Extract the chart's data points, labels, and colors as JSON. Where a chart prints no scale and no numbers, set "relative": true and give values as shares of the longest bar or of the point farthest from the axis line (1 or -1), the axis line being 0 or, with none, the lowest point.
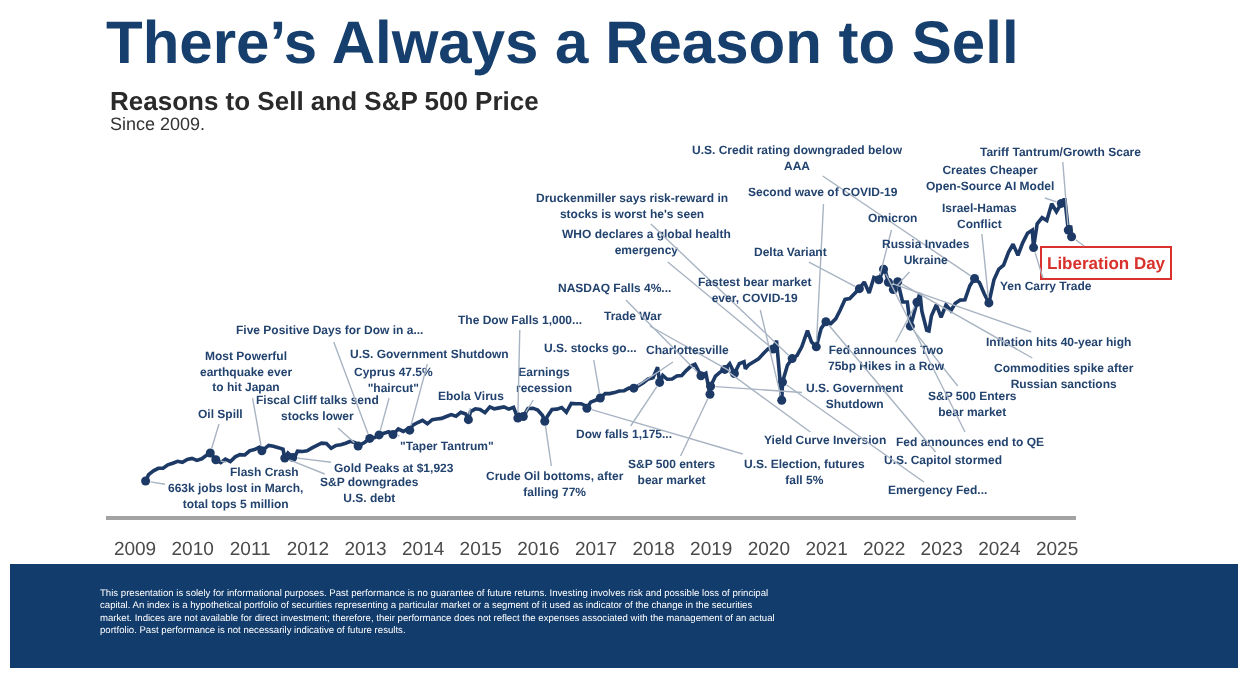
{
  "chart_data": {
    "type": "line",
    "title": "There’s Always a Reason to Sell",
    "subtitle": "Reasons to Sell and S&P 500 Price",
    "relative": true,
    "tick_labels": "x",
    "xlim": [
      "2008-07",
      "2025-05"
    ],
    "xticks": [
      "2009",
      "2010",
      "2011",
      "2012",
      "2013",
      "2014",
      "2015",
      "2016",
      "2017",
      "2018",
      "2019",
      "2020",
      "2021",
      "2022",
      "2023",
      "2024",
      "2025"
    ],
    "x": [
      "2009-03-09",
      "2009-03-28",
      "2009-04-28",
      "2009-05-28",
      "2009-06-28",
      "2009-07-28",
      "2009-08-28",
      "2009-09-28",
      "2009-10-28",
      "2009-11-28",
      "2009-12-28",
      "2010-01-28",
      "2010-02-28",
      "2010-03-28",
      "2010-04-23",
      "2010-05-28",
      "2010-06-28",
      "2010-07-28",
      "2010-08-28",
      "2010-09-28",
      "2010-10-28",
      "2010-11-28",
      "2010-12-28",
      "2011-01-28",
      "2011-02-28",
      "2011-03-16",
      "2011-04-28",
      "2011-05-28",
      "2011-06-28",
      "2011-07-28",
      "2011-08-08",
      "2011-08-28",
      "2011-09-28",
      "2011-10-03",
      "2011-10-28",
      "2011-11-28",
      "2011-12-28",
      "2012-01-28",
      "2012-02-28",
      "2012-03-28",
      "2012-04-28",
      "2012-05-28",
      "2012-06-28",
      "2012-07-28",
      "2012-08-28",
      "2012-09-28",
      "2012-10-28",
      "2012-11-15",
      "2012-12-28",
      "2013-01-28",
      "2013-02-28",
      "2013-03-28",
      "2013-04-28",
      "2013-05-28",
      "2013-06-24",
      "2013-07-28",
      "2013-08-28",
      "2013-09-28",
      "2013-10-08",
      "2013-10-28",
      "2013-11-28",
      "2013-12-28",
      "2014-01-28",
      "2014-02-28",
      "2014-03-28",
      "2014-04-28",
      "2014-05-28",
      "2014-06-28",
      "2014-07-28",
      "2014-08-28",
      "2014-09-28",
      "2014-10-15",
      "2014-10-28",
      "2014-11-28",
      "2014-12-28",
      "2015-01-28",
      "2015-02-28",
      "2015-03-28",
      "2015-04-28",
      "2015-05-28",
      "2015-06-28",
      "2015-07-28",
      "2015-08-24",
      "2015-08-28",
      "2015-09-28",
      "2015-10-28",
      "2015-11-28",
      "2015-12-28",
      "2016-01-28",
      "2016-02-11",
      "2016-02-28",
      "2016-03-28",
      "2016-04-28",
      "2016-05-28",
      "2016-06-27",
      "2016-07-28",
      "2016-08-28",
      "2016-09-28",
      "2016-10-28",
      "2016-11-04",
      "2016-11-28",
      "2016-12-28",
      "2017-01-28",
      "2017-02-28",
      "2017-03-28",
      "2017-04-28",
      "2017-05-28",
      "2017-06-28",
      "2017-07-28",
      "2017-08-28",
      "2017-09-28",
      "2017-10-28",
      "2017-11-28",
      "2017-12-28",
      "2018-01-26",
      "2018-02-08",
      "2018-02-28",
      "2018-03-28",
      "2018-04-28",
      "2018-05-28",
      "2018-06-28",
      "2018-07-28",
      "2018-08-28",
      "2018-09-20",
      "2018-10-28",
      "2018-11-28",
      "2018-12-24",
      "2018-12-28",
      "2019-01-28",
      "2019-02-28",
      "2019-03-28",
      "2019-04-28",
      "2019-05-28",
      "2019-06-28",
      "2019-07-28",
      "2019-08-05",
      "2019-08-28",
      "2019-09-28",
      "2019-10-28",
      "2019-11-28",
      "2019-12-28",
      "2020-01-28",
      "2020-02-19",
      "2020-03-23",
      "2020-03-28",
      "2020-04-28",
      "2020-05-28",
      "2020-06-28",
      "2020-07-28",
      "2020-09-02",
      "2020-09-28",
      "2020-10-28",
      "2020-11-28",
      "2020-12-28",
      "2021-01-28",
      "2021-02-28",
      "2021-03-28",
      "2021-04-28",
      "2021-05-28",
      "2021-06-28",
      "2021-07-28",
      "2021-08-28",
      "2021-09-28",
      "2021-10-28",
      "2021-11-28",
      "2021-12-28",
      "2022-01-03",
      "2022-01-28",
      "2022-02-28",
      "2022-03-28",
      "2022-04-28",
      "2022-05-28",
      "2022-06-16",
      "2022-06-28",
      "2022-07-28",
      "2022-08-16",
      "2022-08-28",
      "2022-09-28",
      "2022-10-12",
      "2022-10-28",
      "2022-11-28",
      "2022-12-28",
      "2023-01-28",
      "2023-02-28",
      "2023-03-28",
      "2023-04-28",
      "2023-05-28",
      "2023-06-28",
      "2023-07-28",
      "2023-08-28",
      "2023-09-28",
      "2023-10-27",
      "2023-11-28",
      "2023-12-28",
      "2024-01-28",
      "2024-02-28",
      "2024-03-28",
      "2024-04-28",
      "2024-05-28",
      "2024-06-28",
      "2024-07-28",
      "2024-08-05",
      "2024-08-28",
      "2024-09-28",
      "2024-10-28",
      "2024-11-28",
      "2024-12-28",
      "2025-01-28",
      "2025-02-19",
      "2025-03-13",
      "2025-03-28",
      "2025-04-03"
    ],
    "series": [
      {
        "color": "#1d3a66",
        "values": [
          0.11,
          0.13,
          0.142,
          0.15,
          0.15,
          0.161,
          0.166,
          0.172,
          0.169,
          0.178,
          0.181,
          0.175,
          0.18,
          0.19,
          0.198,
          0.177,
          0.168,
          0.179,
          0.171,
          0.186,
          0.193,
          0.192,
          0.205,
          0.209,
          0.216,
          0.205,
          0.222,
          0.219,
          0.215,
          0.21,
          0.182,
          0.198,
          0.184,
          0.179,
          0.204,
          0.203,
          0.205,
          0.214,
          0.222,
          0.229,
          0.228,
          0.213,
          0.222,
          0.224,
          0.229,
          0.235,
          0.23,
          0.22,
          0.232,
          0.244,
          0.247,
          0.255,
          0.26,
          0.265,
          0.256,
          0.274,
          0.266,
          0.274,
          0.27,
          0.286,
          0.294,
          0.301,
          0.29,
          0.303,
          0.305,
          0.307,
          0.313,
          0.319,
          0.314,
          0.326,
          0.321,
          0.303,
          0.328,
          0.337,
          0.335,
          0.325,
          0.343,
          0.337,
          0.34,
          0.343,
          0.336,
          0.342,
          0.308,
          0.321,
          0.313,
          0.338,
          0.339,
          0.333,
          0.316,
          0.298,
          0.314,
          0.335,
          0.336,
          0.341,
          0.326,
          0.354,
          0.353,
          0.353,
          0.346,
          0.339,
          0.358,
          0.364,
          0.371,
          0.385,
          0.385,
          0.388,
          0.393,
          0.394,
          0.402,
          0.402,
          0.41,
          0.419,
          0.431,
          0.435,
          0.468,
          0.42,
          0.442,
          0.43,
          0.431,
          0.44,
          0.442,
          0.458,
          0.472,
          0.477,
          0.441,
          0.449,
          0.383,
          0.408,
          0.44,
          0.453,
          0.461,
          0.479,
          0.448,
          0.479,
          0.485,
          0.463,
          0.476,
          0.485,
          0.494,
          0.511,
          0.526,
          0.525,
          0.551,
          0.364,
          0.421,
          0.474,
          0.495,
          0.505,
          0.532,
          0.583,
          0.547,
          0.532,
          0.59,
          0.611,
          0.605,
          0.62,
          0.647,
          0.681,
          0.684,
          0.7,
          0.715,
          0.736,
          0.701,
          0.75,
          0.743,
          0.776,
          0.781,
          0.735,
          0.712,
          0.737,
          0.673,
          0.673,
          0.597,
          0.616,
          0.672,
          0.701,
          0.644,
          0.584,
          0.582,
          0.63,
          0.664,
          0.625,
          0.664,
          0.646,
          0.669,
          0.679,
          0.68,
          0.724,
          0.747,
          0.734,
          0.698,
          0.67,
          0.743,
          0.776,
          0.789,
          0.829,
          0.855,
          0.82,
          0.859,
          0.889,
          0.899,
          0.844,
          0.919,
          0.938,
          0.929,
          0.982,
          0.957,
          0.983,
          1.0,
          0.899,
          0.913,
          0.878
        ]
      }
    ],
    "annotations": [
      {
        "text": "Oil Spill",
        "x": "2010-04-23",
        "y": 0.198
      },
      {
        "text": "Most Powerful\nearthquake ever\nto hit Japan",
        "x": "2011-03-16",
        "y": 0.205
      },
      {
        "text": "Flash Crash",
        "x": "2010-05-28",
        "y": 0.177
      },
      {
        "text": "663k jobs lost in March,\ntotal tops 5 million",
        "x": "2009-03-09",
        "y": 0.11
      },
      {
        "text": "Fiscal Cliff talks send\nstocks lower",
        "x": "2012-11-15",
        "y": 0.22
      },
      {
        "text": "Five Positive Days for Dow in a...",
        "x": "2013-01-28",
        "y": 0.244
      },
      {
        "text": "Cyprus 47.5%\n\"haircut\"",
        "x": "2013-03-28",
        "y": 0.255
      },
      {
        "text": "U.S. Government Shutdown",
        "x": "2013-10-08",
        "y": 0.27
      },
      {
        "text": "Gold Peaks at $1,923",
        "x": "2011-09-28",
        "y": 0.184
      },
      {
        "text": "S&P downgrades\nU.S. debt",
        "x": "2011-08-08",
        "y": 0.182
      },
      {
        "text": "\"Taper Tantrum\"",
        "x": "2013-06-24",
        "y": 0.256
      },
      {
        "text": "Ebola Virus",
        "x": "2014-10-15",
        "y": 0.303
      },
      {
        "text": "Earnings\nrecession",
        "x": "2015-09-28",
        "y": 0.313
      },
      {
        "text": "Crude Oil bottoms, after\nfalling 77%",
        "x": "2016-02-11",
        "y": 0.298
      },
      {
        "text": "The Dow Falls 1,000...",
        "x": "2015-08-24",
        "y": 0.308
      },
      {
        "text": "U.S. stocks go...",
        "x": "2017-01-28",
        "y": 0.371
      },
      {
        "text": "Dow falls 1,175...",
        "x": "2018-02-08",
        "y": 0.42
      },
      {
        "text": "S&P 500 enters\nbear market",
        "x": "2018-12-24",
        "y": 0.383
      },
      {
        "text": "Trade War",
        "x": "2019-05-28",
        "y": 0.448
      },
      {
        "text": "Charlottesville",
        "x": "2017-08-28",
        "y": 0.402
      },
      {
        "text": "NASDAQ Falls 4%...",
        "x": "2018-10-28",
        "y": 0.441
      },
      {
        "text": "WHO declares a global health\nemergency",
        "x": "2020-01-28",
        "y": 0.525
      },
      {
        "text": "Druckenmiller says risk-reward in\nstocks is worst he's seen",
        "x": "2020-05-28",
        "y": 0.495
      },
      {
        "text": "Fastest bear market\never, COVID-19",
        "x": "2020-03-23",
        "y": 0.364
      },
      {
        "text": "U.S. Credit rating downgraded below\nAAA",
        "x": "2023-07-28",
        "y": 0.747
      },
      {
        "text": "Second wave of COVID-19",
        "x": "2020-10-28",
        "y": 0.532
      },
      {
        "text": "Delta Variant",
        "x": "2021-07-28",
        "y": 0.715
      },
      {
        "text": "Omicron",
        "x": "2021-11-28",
        "y": 0.743
      },
      {
        "text": "Russia Invades\nUkraine",
        "x": "2022-02-28",
        "y": 0.712
      },
      {
        "text": "Israel-Hamas\nConflict",
        "x": "2023-10-27",
        "y": 0.67
      },
      {
        "text": "Creates Cheaper\nOpen-Source AI Model",
        "x": "2025-01-28",
        "y": 0.983
      },
      {
        "text": "Tariff Tantrum/Growth Scare",
        "x": "2025-03-13",
        "y": 0.899
      },
      {
        "text": "Liberation Day",
        "x": "2025-04-03",
        "y": 0.878
      },
      {
        "text": "Yen Carry Trade",
        "x": "2024-08-05",
        "y": 0.844
      },
      {
        "text": "Inflation hits 40-year high",
        "x": "2022-01-28",
        "y": 0.735
      },
      {
        "text": "Commodities spike after\nRussian sanctions",
        "x": "2022-03-28",
        "y": 0.737
      },
      {
        "text": "S&P 500 Enters\nbear market",
        "x": "2022-06-16",
        "y": 0.597
      },
      {
        "text": "Fed announces Two\n75bp Hikes in a Row",
        "x": "2022-07-28",
        "y": 0.672
      },
      {
        "text": "U.S. Government\nShutdown",
        "x": "2018-12-28",
        "y": 0.408
      },
      {
        "text": "Yield Curve Inversion",
        "x": "2019-03-28",
        "y": 0.461
      },
      {
        "text": "Fed announces end to QE",
        "x": "2021-12-28",
        "y": 0.776
      },
      {
        "text": "U.S. Election, futures\nfall 5%",
        "x": "2016-11-04",
        "y": 0.339
      },
      {
        "text": "U.S. Capitol stormed",
        "x": "2020-12-28",
        "y": 0.611
      },
      {
        "text": "Emergency Fed...",
        "x": "2020-03-28",
        "y": 0.421
      },
      "Since 2009.",
      "This presentation is solely for informational purposes. Past performance is no guarantee of future returns. Investing involves risk and possible loss of principal capital. An index is a hypothetical portfolio of securities representing a particular market or a segment of it used as indicator of the change in the securities market. Indices are not available for direct investment; therefore, their performance does not reflect the expenses associated with the management of an actual portfolio. Past performance is not necessarily indicative of future results."
    ]
  }
}
